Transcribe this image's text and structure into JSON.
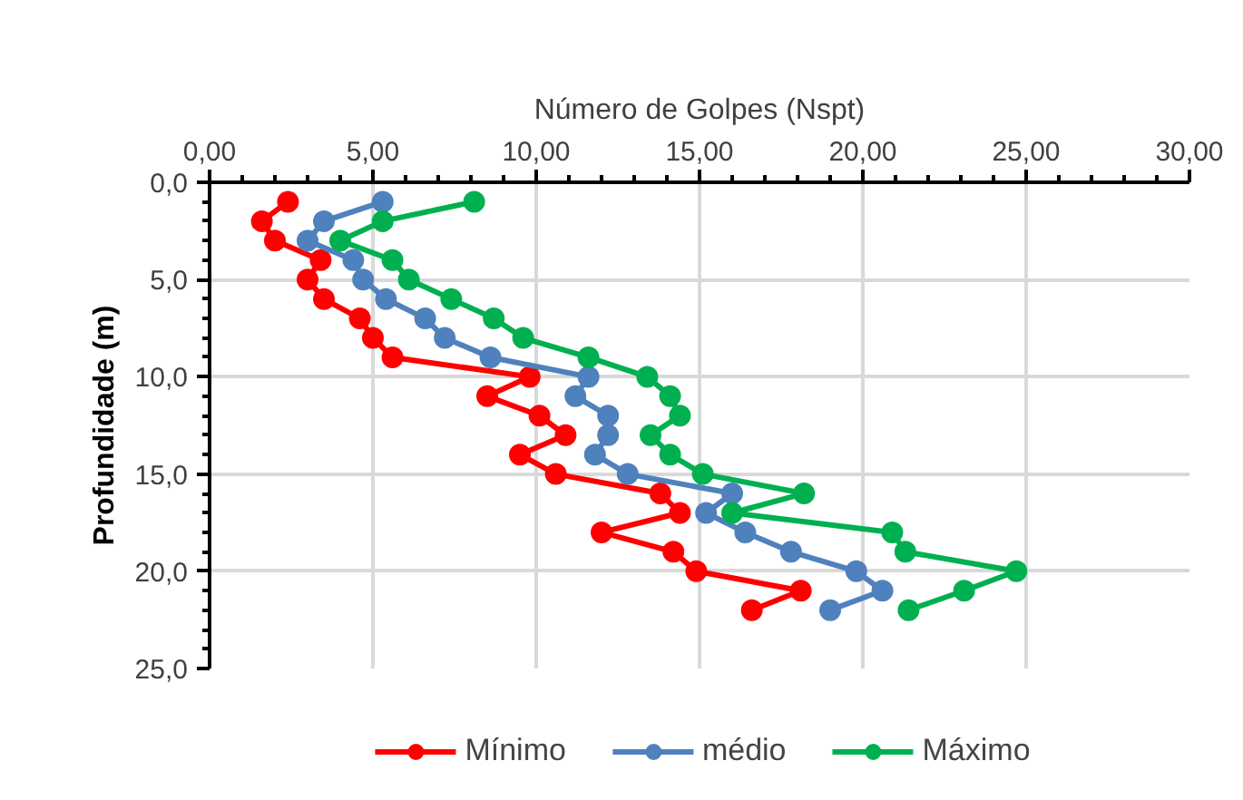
{
  "chart_data": {
    "type": "line",
    "orientation": "horizontal",
    "xlabel": "Número de Golpes (Nspt)",
    "ylabel": "Profundidade (m)",
    "xlim": [
      0,
      30
    ],
    "xticks": [
      {
        "value": 0,
        "label": "0,00"
      },
      {
        "value": 5,
        "label": "5,00"
      },
      {
        "value": 10,
        "label": "10,00"
      },
      {
        "value": 15,
        "label": "15,00"
      },
      {
        "value": 20,
        "label": "20,00"
      },
      {
        "value": 25,
        "label": "25,00"
      },
      {
        "value": 30,
        "label": "30,00"
      }
    ],
    "ylim": [
      25,
      0
    ],
    "yticks": [
      {
        "value": 0,
        "label": "0,0"
      },
      {
        "value": 5,
        "label": "5,0"
      },
      {
        "value": 10,
        "label": "10,0"
      },
      {
        "value": 15,
        "label": "15,0"
      },
      {
        "value": 20,
        "label": "20,0"
      },
      {
        "value": 25,
        "label": "25,0"
      }
    ],
    "grid": true,
    "legend": "bottom",
    "marker": "circle",
    "line_style": "solid",
    "series": [
      {
        "name": "Mínimo",
        "color": "#ff0000",
        "x": [
          1,
          2,
          3,
          4,
          5,
          6,
          7,
          8,
          9,
          10,
          11,
          12,
          13,
          14,
          15,
          16,
          17,
          18,
          19,
          20,
          21,
          22
        ],
        "values": [
          2.4,
          1.6,
          2.0,
          3.4,
          3.0,
          3.5,
          4.6,
          5.0,
          5.6,
          9.8,
          8.5,
          10.1,
          10.9,
          9.5,
          10.6,
          13.8,
          14.4,
          12.0,
          14.2,
          14.9,
          18.1,
          16.6
        ]
      },
      {
        "name": "médio",
        "color": "#4f81bd",
        "x": [
          1,
          2,
          3,
          4,
          5,
          6,
          7,
          8,
          9,
          10,
          11,
          12,
          13,
          14,
          15,
          16,
          17,
          18,
          19,
          20,
          21,
          22
        ],
        "values": [
          5.3,
          3.5,
          3.0,
          4.4,
          4.7,
          5.4,
          6.6,
          7.2,
          8.6,
          11.6,
          11.2,
          12.2,
          12.2,
          11.8,
          12.8,
          16.0,
          15.2,
          16.4,
          17.8,
          19.8,
          20.6,
          19.0
        ]
      },
      {
        "name": "Máximo",
        "color": "#00b050",
        "x": [
          1,
          2,
          3,
          4,
          5,
          6,
          7,
          8,
          9,
          10,
          11,
          12,
          13,
          14,
          15,
          16,
          17,
          18,
          19,
          20,
          21,
          22
        ],
        "values": [
          8.1,
          5.3,
          4.0,
          5.6,
          6.1,
          7.4,
          8.7,
          9.6,
          11.6,
          13.4,
          14.1,
          14.4,
          13.5,
          14.1,
          15.1,
          18.2,
          16.0,
          20.9,
          21.3,
          24.7,
          23.1,
          21.4
        ]
      }
    ]
  }
}
